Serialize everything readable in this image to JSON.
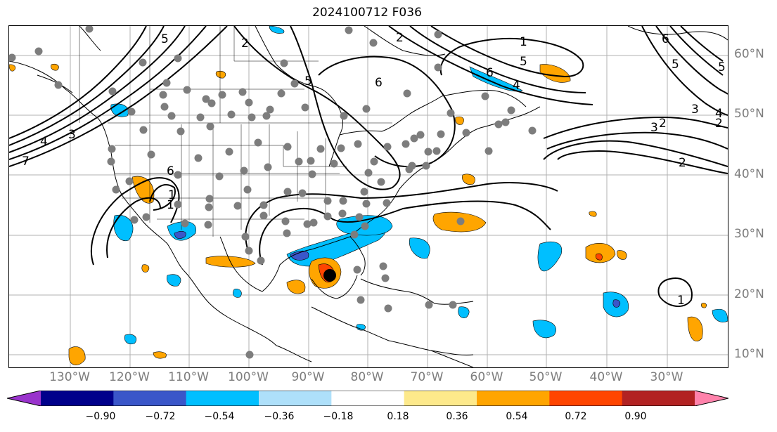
{
  "title": "2024100712 F036",
  "lat_labels": [
    "60°N",
    "50°N",
    "40°N",
    "30°N",
    "20°N",
    "10°N"
  ],
  "lon_labels": [
    "130°W",
    "120°W",
    "110°W",
    "100°W",
    "90°W",
    "80°W",
    "70°W",
    "60°W",
    "50°W",
    "40°W",
    "30°W"
  ],
  "contour_labels": [
    "5",
    "6",
    "2",
    "1",
    "5",
    "6",
    "6",
    "4",
    "1",
    "5",
    "6",
    "5",
    "4",
    "3",
    "2",
    "1",
    "3",
    "2",
    "7",
    "4",
    "3",
    "2",
    "5",
    "1",
    "2"
  ],
  "colorbar": {
    "ticks": [
      "−0.90",
      "−0.72",
      "−0.54",
      "−0.36",
      "−0.18",
      "0.18",
      "0.36",
      "0.54",
      "0.72",
      "0.90"
    ],
    "colors": [
      "#9933cc",
      "#00008b",
      "#3a56c9",
      "#00bfff",
      "#aee0fa",
      "#ffffff",
      "#fde98b",
      "#ffa500",
      "#ff4500",
      "#b22222",
      "#ff82ab"
    ]
  }
}
